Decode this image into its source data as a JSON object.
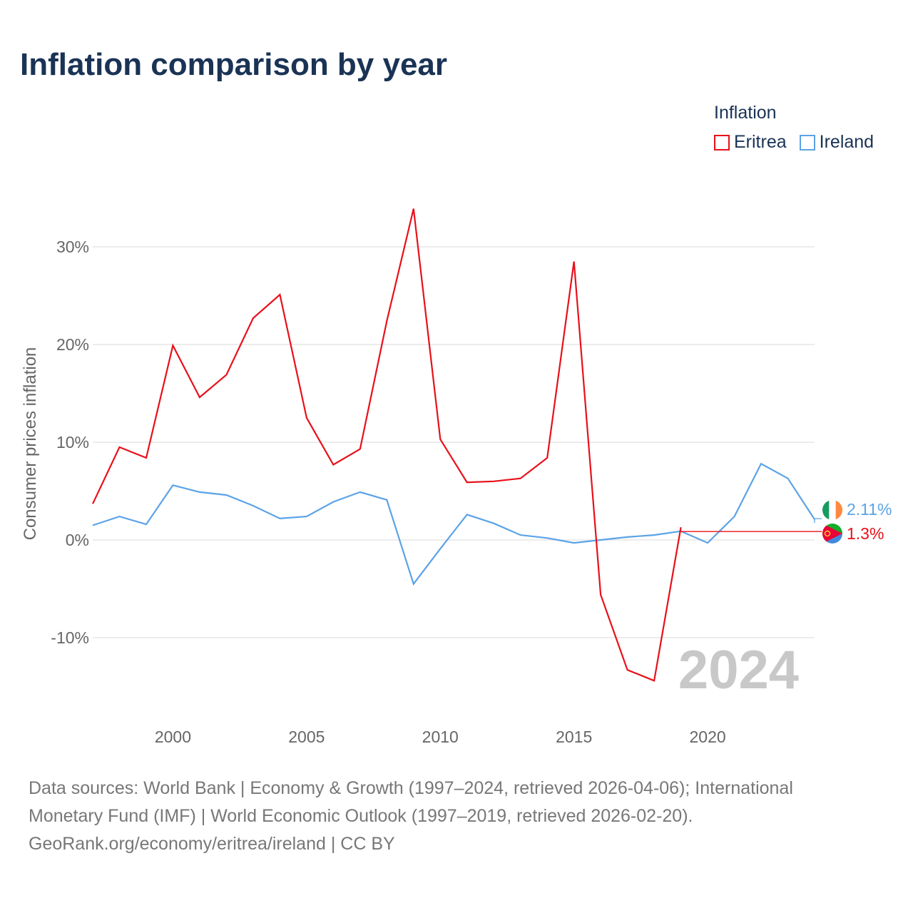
{
  "title": "Inflation comparison by year",
  "legend": {
    "title": "Inflation",
    "items": [
      {
        "label": "Eritrea",
        "color": "#e8101a"
      },
      {
        "label": "Ireland",
        "color": "#5ba3e6"
      }
    ]
  },
  "chart_data": {
    "type": "line",
    "title": "Inflation comparison by year",
    "xlabel": "",
    "ylabel": "Consumer prices inflation",
    "xlim": [
      1997,
      2024
    ],
    "ylim": [
      -17,
      34
    ],
    "x_ticks": [
      2000,
      2005,
      2010,
      2015,
      2020
    ],
    "y_ticks": [
      30,
      20,
      10,
      0,
      -10
    ],
    "y_tick_labels": [
      "30%",
      "20%",
      "10%",
      "0%",
      "-10%"
    ],
    "grid": true,
    "year_watermark": "2024",
    "series": [
      {
        "name": "Eritrea",
        "color": "#e8101a",
        "x": [
          1997,
          1998,
          1999,
          2000,
          2001,
          2002,
          2003,
          2004,
          2005,
          2006,
          2007,
          2008,
          2009,
          2010,
          2011,
          2012,
          2013,
          2014,
          2015,
          2016,
          2017,
          2018,
          2019
        ],
        "values": [
          3.7,
          9.5,
          8.4,
          19.9,
          14.6,
          16.9,
          22.7,
          25.1,
          12.5,
          7.7,
          9.3,
          22.4,
          33.9,
          10.3,
          5.9,
          6.0,
          6.3,
          8.4,
          28.5,
          -5.6,
          -13.3,
          -14.4,
          1.3
        ],
        "end_label": "1.3%",
        "end_value": 1.3
      },
      {
        "name": "Ireland",
        "color": "#5ba3e6",
        "x": [
          1997,
          1998,
          1999,
          2000,
          2001,
          2002,
          2003,
          2004,
          2005,
          2006,
          2007,
          2008,
          2009,
          2010,
          2011,
          2012,
          2013,
          2014,
          2015,
          2016,
          2017,
          2018,
          2019,
          2020,
          2021,
          2022,
          2023,
          2024
        ],
        "values": [
          1.5,
          2.4,
          1.6,
          5.6,
          4.9,
          4.6,
          3.5,
          2.2,
          2.4,
          3.9,
          4.9,
          4.1,
          -4.5,
          -0.9,
          2.6,
          1.7,
          0.5,
          0.2,
          -0.3,
          0.0,
          0.3,
          0.5,
          0.9,
          -0.3,
          2.4,
          7.8,
          6.3,
          2.11
        ],
        "end_label": "2.11%",
        "end_value": 2.11
      }
    ]
  },
  "footer": {
    "line1": "Data sources: World Bank | Economy & Growth (1997–2024, retrieved 2026-04-06); International",
    "line2": "Monetary Fund (IMF) | World Economic Outlook (1997–2019, retrieved 2026-02-20).",
    "line3": "GeoRank.org/economy/eritrea/ireland | CC BY"
  }
}
